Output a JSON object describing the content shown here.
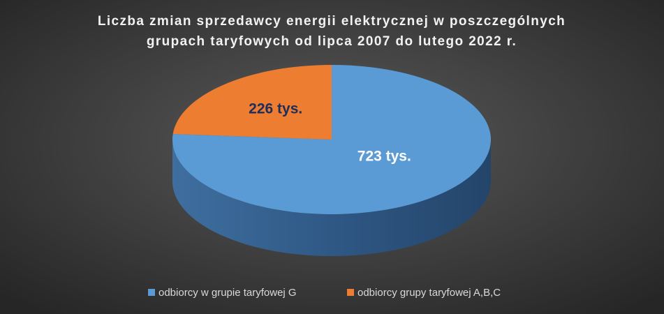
{
  "chart_data": {
    "type": "pie3d",
    "title": [
      "Liczba zmian sprzedawcy energii elektrycznej w poszczególnych",
      "grupach taryfowych od lipca 2007 do lutego 2022 r."
    ],
    "categories": [
      "odbiorcy w grupie taryfowej G",
      "odbiorcy grupy taryfowej A,B,C"
    ],
    "values": [
      723,
      226
    ],
    "value_labels": [
      "723 tys.",
      "226 tys."
    ],
    "colors": [
      "#5b9bd5",
      "#ed7d31"
    ],
    "legend": "bottom"
  }
}
